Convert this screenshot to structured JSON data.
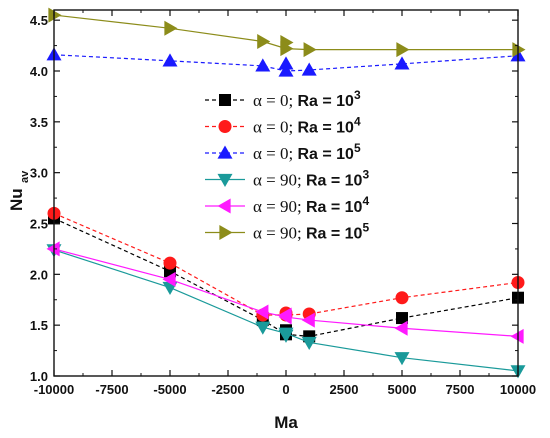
{
  "chart_data": {
    "type": "line",
    "xlabel": "Ma",
    "ylabel": {
      "main": "Nu",
      "sub": "av"
    },
    "xlim": [
      -10000,
      10000
    ],
    "ylim": [
      1.0,
      4.6
    ],
    "xticks": [
      -10000,
      -7500,
      -5000,
      -2500,
      0,
      2500,
      5000,
      7500,
      10000
    ],
    "yticks": [
      1.0,
      1.5,
      2.0,
      2.5,
      3.0,
      3.5,
      4.0,
      4.5
    ],
    "grid": false,
    "legend_position": "center",
    "x": [
      -10000,
      -5000,
      -1000,
      0,
      1000,
      5000,
      10000
    ],
    "series": [
      {
        "label": {
          "alpha": "α = 0;",
          "ra": "Ra = 10",
          "exp": "3"
        },
        "color": "#000000",
        "marker": "square",
        "line": "dashed",
        "values": [
          2.55,
          2.03,
          1.55,
          1.41,
          1.39,
          1.57,
          1.77
        ],
        "values_x0_extra": [
          1.45
        ]
      },
      {
        "label": {
          "alpha": "α = 0;",
          "ra": "Ra = 10",
          "exp": "4"
        },
        "color": "#ff1a1a",
        "marker": "circle",
        "line": "dashed",
        "values": [
          2.6,
          2.11,
          1.6,
          1.6,
          1.61,
          1.77,
          1.92
        ],
        "values_x0_extra": [
          1.62
        ]
      },
      {
        "label": {
          "alpha": "α = 0;",
          "ra": "Ra = 10",
          "exp": "5"
        },
        "color": "#1a1aff",
        "marker": "triangle-up",
        "line": "dashed",
        "values": [
          4.16,
          4.1,
          4.05,
          4.0,
          4.01,
          4.07,
          4.15
        ],
        "values_x0_extra": [
          4.07
        ]
      },
      {
        "label": {
          "alpha": "α = 90;",
          "ra": "Ra = 10",
          "exp": "3"
        },
        "color": "#1a9a9a",
        "marker": "triangle-down",
        "line": "solid",
        "values": [
          2.24,
          1.87,
          1.48,
          1.42,
          1.33,
          1.18,
          1.05
        ],
        "values_x0_extra": [
          1.4
        ]
      },
      {
        "label": {
          "alpha": "α = 90;",
          "ra": "Ra = 10",
          "exp": "4"
        },
        "color": "#ff1aff",
        "marker": "triangle-left",
        "line": "solid",
        "values": [
          2.25,
          1.95,
          1.63,
          1.58,
          1.55,
          1.47,
          1.39
        ],
        "values_x0_extra": [
          1.6
        ]
      },
      {
        "label": {
          "alpha": "α = 90;",
          "ra": "Ra = 10",
          "exp": "5"
        },
        "color": "#8c8c1a",
        "marker": "triangle-right",
        "line": "solid",
        "values": [
          4.55,
          4.42,
          4.29,
          4.22,
          4.21,
          4.21,
          4.21
        ],
        "values_x0_extra": [
          4.28
        ]
      }
    ]
  }
}
